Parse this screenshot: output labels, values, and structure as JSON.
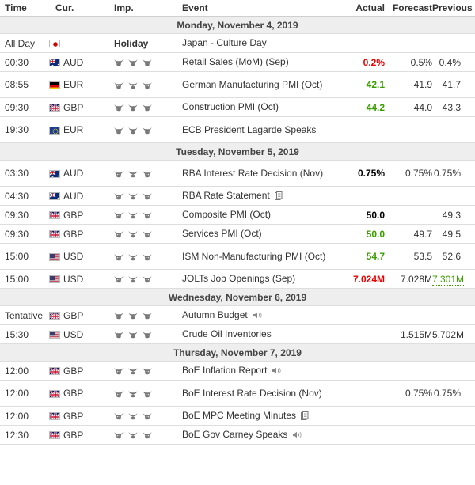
{
  "headers": {
    "time": "Time",
    "cur": "Cur.",
    "imp": "Imp.",
    "event": "Event",
    "actual": "Actual",
    "forecast": "Forecast",
    "previous": "Previous"
  },
  "days": [
    {
      "label": "Monday, November 4, 2019",
      "events": [
        {
          "time": "All Day",
          "flag": "jp",
          "cur": "",
          "imp": "Holiday",
          "event": "Japan - Culture Day",
          "actual": "",
          "forecast": "",
          "previous": "",
          "tall": false
        },
        {
          "time": "00:30",
          "flag": "au",
          "cur": "AUD",
          "event": "Retail Sales (MoM) (Sep)",
          "actual": "0.2%",
          "actual_color": "red",
          "forecast": "0.5%",
          "previous": "0.4%",
          "tall": false
        },
        {
          "time": "08:55",
          "flag": "de",
          "cur": "EUR",
          "event": "German Manufacturing PMI (Oct)",
          "actual": "42.1",
          "actual_color": "green",
          "forecast": "41.9",
          "previous": "41.7",
          "tall": true
        },
        {
          "time": "09:30",
          "flag": "gb",
          "cur": "GBP",
          "event": "Construction PMI (Oct)",
          "actual": "44.2",
          "actual_color": "green",
          "forecast": "44.0",
          "previous": "43.3",
          "tall": false
        },
        {
          "time": "19:30",
          "flag": "eu",
          "cur": "EUR",
          "event": "ECB President Lagarde Speaks",
          "actual": "",
          "forecast": "",
          "previous": "",
          "tall": true
        }
      ]
    },
    {
      "label": "Tuesday, November 5, 2019",
      "events": [
        {
          "time": "03:30",
          "flag": "au",
          "cur": "AUD",
          "event": "RBA Interest Rate Decision (Nov)",
          "actual": "0.75%",
          "actual_color": "black",
          "forecast": "0.75%",
          "previous": "0.75%",
          "tall": true
        },
        {
          "time": "04:30",
          "flag": "au",
          "cur": "AUD",
          "event": "RBA Rate Statement",
          "icon": "doc",
          "actual": "",
          "forecast": "",
          "previous": "",
          "tall": false
        },
        {
          "time": "09:30",
          "flag": "gb",
          "cur": "GBP",
          "event": "Composite PMI (Oct)",
          "actual": "50.0",
          "actual_color": "black",
          "forecast": "",
          "previous": "49.3",
          "tall": false
        },
        {
          "time": "09:30",
          "flag": "gb",
          "cur": "GBP",
          "event": "Services PMI (Oct)",
          "actual": "50.0",
          "actual_color": "green",
          "forecast": "49.7",
          "previous": "49.5",
          "tall": false
        },
        {
          "time": "15:00",
          "flag": "us",
          "cur": "USD",
          "event": "ISM Non-Manufacturing PMI (Oct)",
          "actual": "54.7",
          "actual_color": "green",
          "forecast": "53.5",
          "previous": "52.6",
          "tall": true
        },
        {
          "time": "15:00",
          "flag": "us",
          "cur": "USD",
          "event": "JOLTs Job Openings (Sep)",
          "actual": "7.024M",
          "actual_color": "red",
          "forecast": "7.028M",
          "previous": "7.301M",
          "previous_style": "green",
          "tall": false
        }
      ]
    },
    {
      "label": "Wednesday, November 6, 2019",
      "events": [
        {
          "time": "Tentative",
          "flag": "gb",
          "cur": "GBP",
          "event": "Autumn Budget",
          "icon": "speaker",
          "actual": "",
          "forecast": "",
          "previous": "",
          "tall": false
        },
        {
          "time": "15:30",
          "flag": "us",
          "cur": "USD",
          "event": "Crude Oil Inventories",
          "actual": "",
          "forecast": "1.515M",
          "previous": "5.702M",
          "tall": false
        }
      ]
    },
    {
      "label": "Thursday, November 7, 2019",
      "events": [
        {
          "time": "12:00",
          "flag": "gb",
          "cur": "GBP",
          "event": "BoE Inflation Report",
          "icon": "speaker",
          "actual": "",
          "forecast": "",
          "previous": "",
          "tall": false
        },
        {
          "time": "12:00",
          "flag": "gb",
          "cur": "GBP",
          "event": "BoE Interest Rate Decision (Nov)",
          "actual": "",
          "forecast": "0.75%",
          "previous": "0.75%",
          "tall": true
        },
        {
          "time": "12:00",
          "flag": "gb",
          "cur": "GBP",
          "event": "BoE MPC Meeting Minutes",
          "icon": "doc",
          "actual": "",
          "forecast": "",
          "previous": "",
          "tall": false
        },
        {
          "time": "12:30",
          "flag": "gb",
          "cur": "GBP",
          "event": "BoE Gov Carney Speaks",
          "icon": "speaker",
          "actual": "",
          "forecast": "",
          "previous": "",
          "tall": false
        }
      ]
    }
  ]
}
